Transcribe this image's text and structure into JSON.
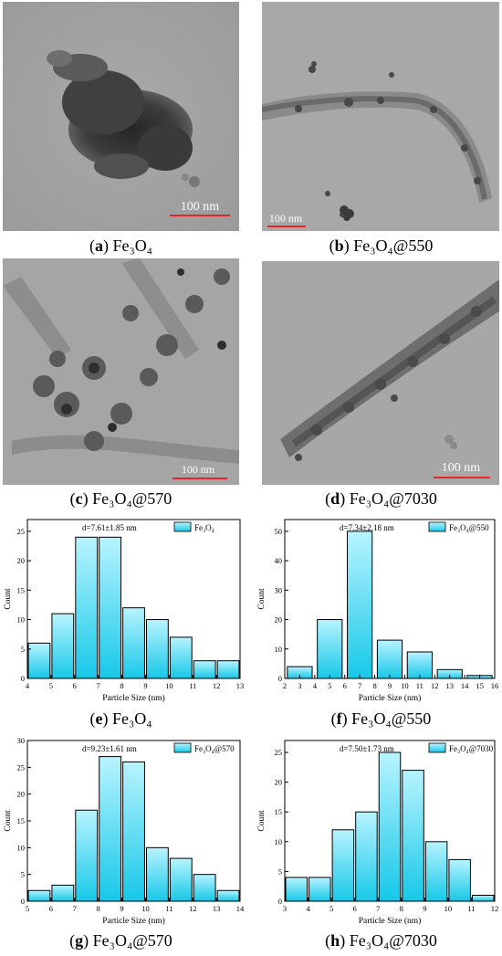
{
  "panels": [
    {
      "letter": "a",
      "name": "Fe₃O₄",
      "scale_label": "100 nm"
    },
    {
      "letter": "b",
      "name": "Fe₃O₄@550",
      "scale_label": "100 nm"
    },
    {
      "letter": "c",
      "name": "Fe₃O₄@570",
      "scale_label": "100 nm"
    },
    {
      "letter": "d",
      "name": "Fe₃O₄@7030",
      "scale_label": "100 nm"
    },
    {
      "letter": "e",
      "name": "Fe₃O₄"
    },
    {
      "letter": "f",
      "name": "Fe₃O₄@550"
    },
    {
      "letter": "g",
      "name": "Fe₃O₄@570"
    },
    {
      "letter": "h",
      "name": "Fe₃O₄@7030"
    }
  ],
  "colors": {
    "bar_top": "#b8f4ff",
    "bar_bottom": "#16c8e8",
    "scale_bar": "#e8242b"
  },
  "chart_data": [
    {
      "type": "bar",
      "panel": "e",
      "xlabel": "Particle Size (nm)",
      "ylabel": "Count",
      "annotation": "d=7.61±1.85 nm",
      "legend": "Fe₃O₄",
      "legend_position": "top-right",
      "xlim": [
        4,
        13
      ],
      "ylim": [
        0,
        27
      ],
      "xticks": [
        4,
        5,
        6,
        7,
        8,
        9,
        10,
        11,
        12,
        13
      ],
      "yticks": [
        0,
        5,
        10,
        15,
        20,
        25
      ],
      "bin_width": 1,
      "x": [
        4.5,
        5.5,
        6.5,
        7.5,
        8.5,
        9.5,
        10.5,
        11.5,
        12.5
      ],
      "values": [
        6,
        11,
        24,
        24,
        12,
        10,
        7,
        3,
        3
      ]
    },
    {
      "type": "bar",
      "panel": "f",
      "xlabel": "Particle Size (nm)",
      "ylabel": "Count",
      "annotation": "d=7.34±2.18 nm",
      "legend": "Fe₃O₄@550",
      "legend_position": "top-right",
      "xlim": [
        2,
        16
      ],
      "ylim": [
        0,
        54
      ],
      "xticks": [
        2,
        3,
        4,
        5,
        6,
        7,
        8,
        9,
        10,
        11,
        12,
        13,
        14,
        15,
        16
      ],
      "yticks": [
        0,
        10,
        20,
        30,
        40,
        50
      ],
      "bin_width": 1.8,
      "x": [
        3,
        5,
        7,
        9,
        11,
        13,
        15
      ],
      "values": [
        4,
        20,
        50,
        13,
        9,
        3,
        1
      ]
    },
    {
      "type": "bar",
      "panel": "g",
      "xlabel": "Particle Size (nm)",
      "ylabel": "Count",
      "annotation": "d=9.23±1.61 nm",
      "legend": "Fe₃O₄@570",
      "legend_position": "top-right",
      "xlim": [
        5,
        14
      ],
      "ylim": [
        0,
        30
      ],
      "xticks": [
        5,
        6,
        7,
        8,
        9,
        10,
        11,
        12,
        13,
        14
      ],
      "yticks": [
        0,
        5,
        10,
        15,
        20,
        25,
        30
      ],
      "bin_width": 1,
      "x": [
        5.5,
        6.5,
        7.5,
        8.5,
        9.5,
        10.5,
        11.5,
        12.5,
        13.5
      ],
      "values": [
        2,
        3,
        17,
        27,
        26,
        10,
        8,
        5,
        2
      ]
    },
    {
      "type": "bar",
      "panel": "h",
      "xlabel": "Particle Size (nm)",
      "ylabel": "Count",
      "annotation": "d=7.50±1.73 nm",
      "legend": "Fe₃O₄@7030",
      "legend_position": "top-right",
      "xlim": [
        3,
        12
      ],
      "ylim": [
        0,
        27
      ],
      "xticks": [
        3,
        4,
        5,
        6,
        7,
        8,
        9,
        10,
        11,
        12
      ],
      "yticks": [
        0,
        5,
        10,
        15,
        20,
        25
      ],
      "bin_width": 1,
      "x": [
        3.5,
        4.5,
        5.5,
        6.5,
        7.5,
        8.5,
        9.5,
        10.5,
        11.5
      ],
      "values": [
        4,
        4,
        12,
        15,
        25,
        22,
        10,
        7,
        1
      ]
    }
  ]
}
